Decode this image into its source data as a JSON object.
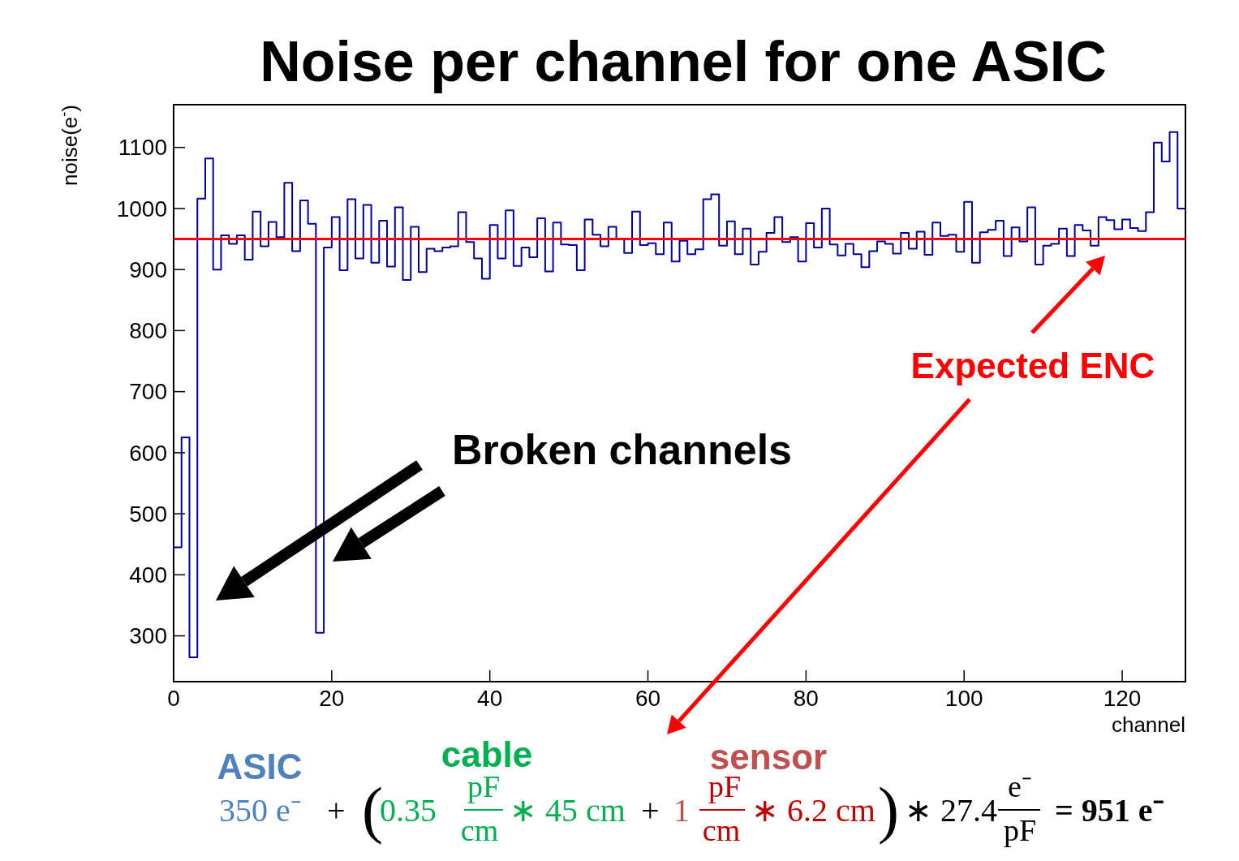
{
  "chart_data": {
    "type": "histogram",
    "title": "Noise per channel for one ASIC",
    "xlabel": "channel",
    "ylabel": "noise(e$^{-}$)",
    "bins": [
      0,
      1,
      2,
      3,
      4,
      5,
      6,
      7,
      8,
      9,
      10,
      11,
      12,
      13,
      14,
      15,
      16,
      17,
      18,
      19,
      20,
      21,
      22,
      23,
      24,
      25,
      26,
      27,
      28,
      29,
      30,
      31,
      32,
      33,
      34,
      35,
      36,
      37,
      38,
      39,
      40,
      41,
      42,
      43,
      44,
      45,
      46,
      47,
      48,
      49,
      50,
      51,
      52,
      53,
      54,
      55,
      56,
      57,
      58,
      59,
      60,
      61,
      62,
      63,
      64,
      65,
      66,
      67,
      68,
      69,
      70,
      71,
      72,
      73,
      74,
      75,
      76,
      77,
      78,
      79,
      80,
      81,
      82,
      83,
      84,
      85,
      86,
      87,
      88,
      89,
      90,
      91,
      92,
      93,
      94,
      95,
      96,
      97,
      98,
      99,
      100,
      101,
      102,
      103,
      104,
      105,
      106,
      107,
      108,
      109,
      110,
      111,
      112,
      113,
      114,
      115,
      116,
      117,
      118,
      119,
      120,
      121,
      122,
      123,
      124,
      125,
      126,
      127,
      128
    ],
    "values": [
      445,
      625,
      265,
      1016,
      1082,
      900,
      956,
      942,
      956,
      916,
      995,
      938,
      978,
      953,
      1042,
      930,
      1013,
      975,
      305,
      936,
      986,
      899,
      1015,
      918,
      1006,
      911,
      980,
      905,
      1002,
      883,
      970,
      896,
      934,
      930,
      936,
      938,
      994,
      945,
      918,
      885,
      973,
      918,
      997,
      906,
      936,
      920,
      984,
      897,
      977,
      941,
      940,
      899,
      982,
      957,
      938,
      970,
      950,
      927,
      995,
      940,
      943,
      925,
      977,
      913,
      947,
      925,
      933,
      1015,
      1023,
      939,
      979,
      925,
      967,
      908,
      929,
      960,
      986,
      945,
      953,
      913,
      976,
      936,
      1000,
      941,
      923,
      942,
      925,
      904,
      930,
      946,
      942,
      926,
      960,
      934,
      962,
      924,
      977,
      955,
      957,
      929,
      1011,
      911,
      961,
      965,
      980,
      922,
      969,
      946,
      1002,
      908,
      939,
      942,
      967,
      922,
      973,
      964,
      939,
      986,
      981,
      966,
      982,
      968,
      963,
      994,
      1108,
      1077,
      1125,
      1000
    ],
    "color": "#0000a0",
    "xlim": [
      0,
      128
    ],
    "xticks": [
      0,
      20,
      40,
      60,
      80,
      100,
      120
    ],
    "ylim": [
      225,
      1170
    ],
    "yticks": [
      300,
      400,
      500,
      600,
      700,
      800,
      900,
      1000,
      1100
    ],
    "ref_lines": [
      {
        "axis": "y",
        "value": 950,
        "label": "Expected ENC",
        "color": "#ff0000"
      }
    ],
    "grid": false,
    "annotations": [
      "Broken channels",
      "ASIC",
      "cable",
      "sensor",
      "350 e⁻",
      "+",
      "(",
      "0.35",
      "pF",
      "cm",
      "∗ 45 cm",
      "+",
      "1",
      "pF",
      "cm",
      "∗ 6.2 cm",
      ")",
      "∗ 27.4",
      "e⁻",
      "pF",
      "= 951 e⁻"
    ]
  }
}
